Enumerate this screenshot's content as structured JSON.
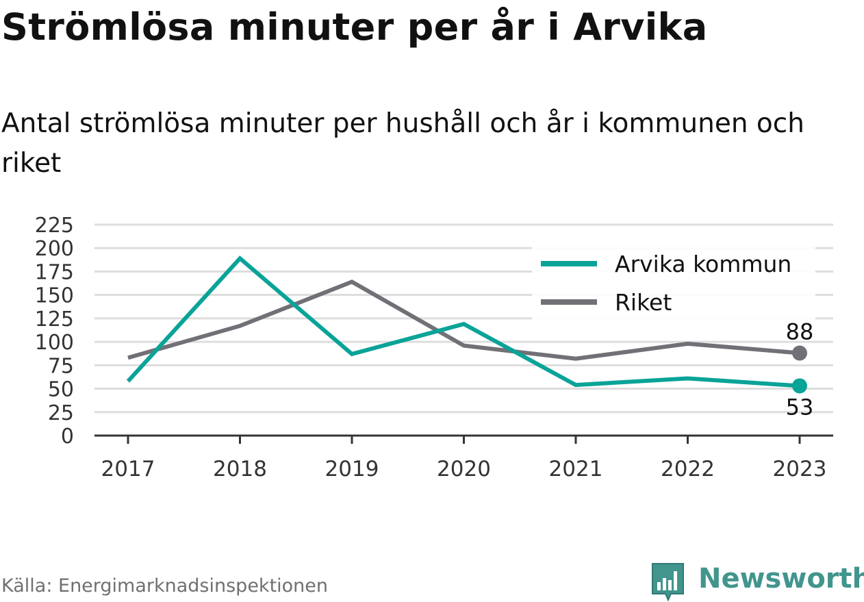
{
  "title": "Strömlösa minuter per år i Arvika",
  "subtitle": "Antal strömlösa minuter per hushåll och år i kommunen och riket",
  "source": "Källa: Energimarknadsinspektionen",
  "brand": "Newsworthy",
  "colors": {
    "arvika": "#0aa398",
    "riket": "#727077",
    "grid": "#dddddd",
    "axis": "#333333",
    "brand": "#41958d"
  },
  "chart_data": {
    "type": "line",
    "categories": [
      "2017",
      "2018",
      "2019",
      "2020",
      "2021",
      "2022",
      "2023"
    ],
    "y_ticks": [
      "0",
      "25",
      "50",
      "75",
      "100",
      "125",
      "150",
      "175",
      "200",
      "225"
    ],
    "ylim": [
      0,
      225
    ],
    "grid": true,
    "legend_position": "top-right",
    "series": [
      {
        "name": "Arvika kommun",
        "key": "arvika",
        "values": [
          58,
          189,
          87,
          119,
          54,
          61,
          53
        ]
      },
      {
        "name": "Riket",
        "key": "riket",
        "values": [
          83,
          117,
          164,
          96,
          82,
          98,
          88
        ]
      }
    ],
    "end_labels": {
      "arvika": "53",
      "riket": "88"
    }
  }
}
